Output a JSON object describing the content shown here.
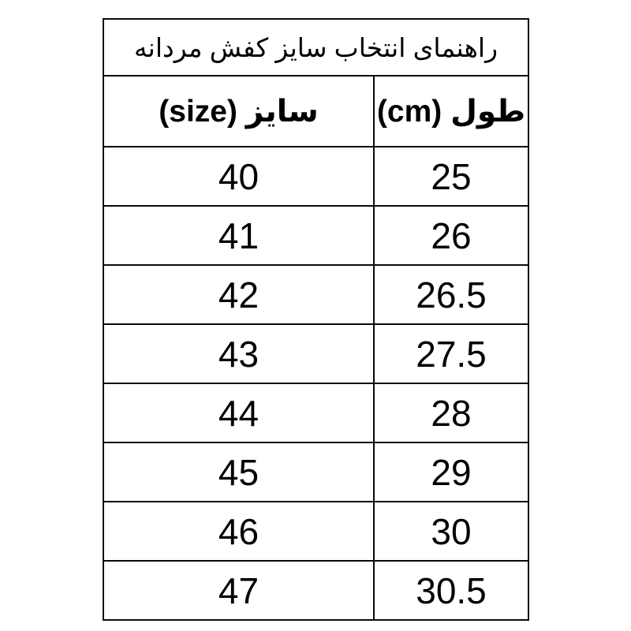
{
  "table": {
    "title": "راهنمای انتخاب سایز کفش مردانه",
    "headers": {
      "size": "سایز (size)",
      "length": "طول (cm)"
    },
    "rows": [
      {
        "size": "40",
        "cm": "25"
      },
      {
        "size": "41",
        "cm": "26"
      },
      {
        "size": "42",
        "cm": "26.5"
      },
      {
        "size": "43",
        "cm": "27.5"
      },
      {
        "size": "44",
        "cm": "28"
      },
      {
        "size": "45",
        "cm": "29"
      },
      {
        "size": "46",
        "cm": "30"
      },
      {
        "size": "47",
        "cm": "30.5"
      }
    ],
    "colors": {
      "title_text": "#2447d2",
      "body_text": "#000000",
      "border": "#0a0a0a",
      "background": "#ffffff"
    }
  },
  "chart_data": {
    "type": "table",
    "title": "راهنمای انتخاب سایز کفش مردانه",
    "columns": [
      "سایز (size)",
      "طول (cm)"
    ],
    "rows": [
      [
        "40",
        "25"
      ],
      [
        "41",
        "26"
      ],
      [
        "42",
        "26.5"
      ],
      [
        "43",
        "27.5"
      ],
      [
        "44",
        "28"
      ],
      [
        "45",
        "29"
      ],
      [
        "46",
        "30"
      ],
      [
        "47",
        "30.5"
      ]
    ]
  }
}
